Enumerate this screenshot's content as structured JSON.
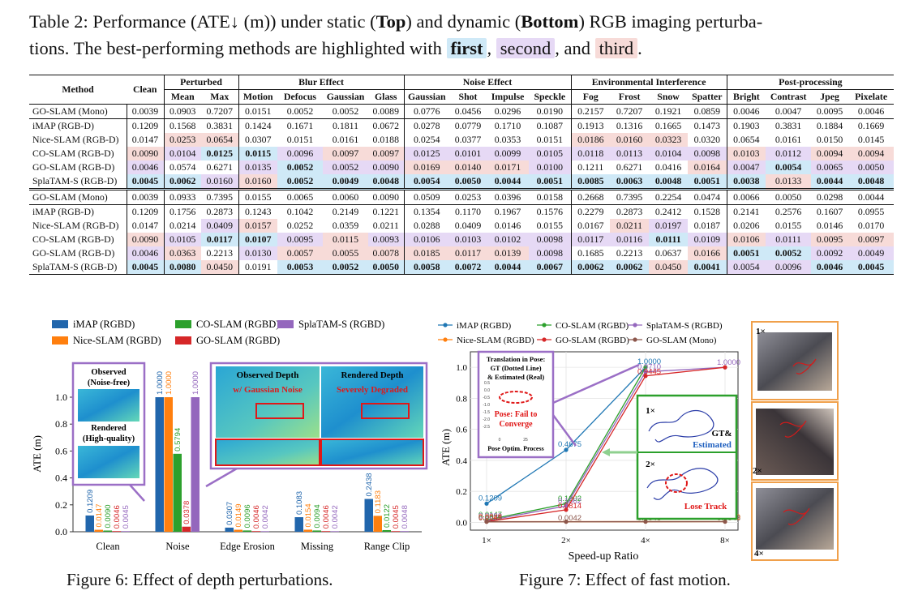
{
  "caption": {
    "part1": "Table 2: Performance (ATE↓ (m)) under static (",
    "top": "Top",
    "part2": ") and dynamic (",
    "bottom": "Bottom",
    "part3": ") RGB imaging perturba-",
    "part4": "tions. The best-performing methods are highlighted with ",
    "first": "first",
    "comma1": ", ",
    "second": "second",
    "comma2": ", and ",
    "third": "third",
    "end": "."
  },
  "table": {
    "groups": [
      "Method",
      "Clean",
      "Perturbed",
      "Blur Effect",
      "Noise Effect",
      "Environmental Interference",
      "Post-processing"
    ],
    "subcols": [
      "Mean",
      "Max",
      "Motion",
      "Defocus",
      "Gaussian",
      "Glass",
      "Gaussian",
      "Shot",
      "Impulse",
      "Speckle",
      "Fog",
      "Frost",
      "Snow",
      "Spatter",
      "Bright",
      "Contrast",
      "Jpeg",
      "Pixelate"
    ],
    "blocks": [
      {
        "mono": {
          "name": "GO-SLAM (Mono)",
          "cells": [
            "0.0039",
            "0.0903",
            "0.7207",
            "0.0151",
            "0.0052",
            "0.0052",
            "0.0089",
            "0.0776",
            "0.0456",
            "0.0296",
            "0.0190",
            "0.2157",
            "0.7207",
            "0.1921",
            "0.0859",
            "0.0046",
            "0.0047",
            "0.0095",
            "0.0046"
          ],
          "hl": [
            "",
            "",
            "",
            "",
            "",
            "",
            "",
            "",
            "",
            "",
            "",
            "",
            "",
            "",
            "",
            "",
            "",
            "",
            ""
          ]
        },
        "rows": [
          {
            "name": "iMAP (RGB-D)",
            "cells": [
              "0.1209",
              "0.1568",
              "0.3831",
              "0.1424",
              "0.1671",
              "0.1811",
              "0.0672",
              "0.0278",
              "0.0779",
              "0.1710",
              "0.1087",
              "0.1913",
              "0.1316",
              "0.1665",
              "0.1473",
              "0.1903",
              "0.3831",
              "0.1884",
              "0.1669"
            ],
            "hl": [
              "",
              "",
              "",
              "",
              "",
              "",
              "",
              "",
              "",
              "",
              "",
              "",
              "",
              "",
              "",
              "",
              "",
              "",
              ""
            ]
          },
          {
            "name": "Nice-SLAM (RGB-D)",
            "cells": [
              "0.0147",
              "0.0253",
              "0.0654",
              "0.0307",
              "0.0151",
              "0.0161",
              "0.0188",
              "0.0254",
              "0.0377",
              "0.0353",
              "0.0151",
              "0.0186",
              "0.0160",
              "0.0323",
              "0.0320",
              "0.0654",
              "0.0161",
              "0.0150",
              "0.0145"
            ],
            "hl": [
              "",
              "c3",
              "c3",
              "",
              "",
              "",
              "",
              "",
              "",
              "",
              "",
              "c3",
              "c3",
              "c3",
              "",
              "",
              "",
              "",
              ""
            ]
          },
          {
            "name": "CO-SLAM (RGB-D)",
            "cells": [
              "0.0090",
              "0.0104",
              "0.0125",
              "0.0115",
              "0.0096",
              "0.0097",
              "0.0097",
              "0.0125",
              "0.0101",
              "0.0099",
              "0.0105",
              "0.0118",
              "0.0113",
              "0.0104",
              "0.0098",
              "0.0103",
              "0.0112",
              "0.0094",
              "0.0094"
            ],
            "hl": [
              "c3",
              "c2",
              "c1b",
              "c1b",
              "c2",
              "c3",
              "c3",
              "c2",
              "c2",
              "c2",
              "c2",
              "c2",
              "c2",
              "c2",
              "c2",
              "c3",
              "c2",
              "c3",
              "c3"
            ]
          },
          {
            "name": "GO-SLAM (RGB-D)",
            "cells": [
              "0.0046",
              "0.0574",
              "0.6271",
              "0.0135",
              "0.0052",
              "0.0052",
              "0.0090",
              "0.0169",
              "0.0140",
              "0.0171",
              "0.0100",
              "0.1211",
              "0.6271",
              "0.0416",
              "0.0164",
              "0.0047",
              "0.0054",
              "0.0065",
              "0.0050"
            ],
            "hl": [
              "c2",
              "",
              "",
              "c2",
              "c1b",
              "c2",
              "c2",
              "c3",
              "c3",
              "c3",
              "c2",
              "",
              "",
              "",
              "c3",
              "c2",
              "c1b",
              "c2",
              "c2"
            ]
          },
          {
            "name": "SplaTAM-S (RGB-D)",
            "cells": [
              "0.0045",
              "0.0062",
              "0.0160",
              "0.0160",
              "0.0052",
              "0.0049",
              "0.0048",
              "0.0054",
              "0.0050",
              "0.0044",
              "0.0051",
              "0.0085",
              "0.0063",
              "0.0048",
              "0.0051",
              "0.0038",
              "0.0133",
              "0.0044",
              "0.0048"
            ],
            "hl": [
              "c1b",
              "c1b",
              "c2",
              "c3",
              "c1b",
              "c1b",
              "c1b",
              "c1b",
              "c1b",
              "c1b",
              "c1b",
              "c1b",
              "c1b",
              "c1b",
              "c1b",
              "c1b",
              "c3",
              "c1b",
              "c1b"
            ]
          }
        ]
      },
      {
        "mono": {
          "name": "GO-SLAM (Mono)",
          "cells": [
            "0.0039",
            "0.0933",
            "0.7395",
            "0.0155",
            "0.0065",
            "0.0060",
            "0.0090",
            "0.0509",
            "0.0253",
            "0.0396",
            "0.0158",
            "0.2668",
            "0.7395",
            "0.2254",
            "0.0474",
            "0.0066",
            "0.0050",
            "0.0298",
            "0.0044"
          ],
          "hl": [
            "",
            "",
            "",
            "",
            "",
            "",
            "",
            "",
            "",
            "",
            "",
            "",
            "",
            "",
            "",
            "",
            "",
            "",
            ""
          ]
        },
        "rows": [
          {
            "name": "iMAP (RGB-D)",
            "cells": [
              "0.1209",
              "0.1756",
              "0.2873",
              "0.1243",
              "0.1042",
              "0.2149",
              "0.1221",
              "0.1354",
              "0.1170",
              "0.1967",
              "0.1576",
              "0.2279",
              "0.2873",
              "0.2412",
              "0.1528",
              "0.2141",
              "0.2576",
              "0.1607",
              "0.0955"
            ],
            "hl": [
              "",
              "",
              "",
              "",
              "",
              "",
              "",
              "",
              "",
              "",
              "",
              "",
              "",
              "",
              "",
              "",
              "",
              "",
              ""
            ]
          },
          {
            "name": "Nice-SLAM (RGB-D)",
            "cells": [
              "0.0147",
              "0.0214",
              "0.0409",
              "0.0157",
              "0.0252",
              "0.0359",
              "0.0211",
              "0.0288",
              "0.0409",
              "0.0146",
              "0.0155",
              "0.0167",
              "0.0211",
              "0.0197",
              "0.0187",
              "0.0206",
              "0.0155",
              "0.0146",
              "0.0170"
            ],
            "hl": [
              "",
              "",
              "c2",
              "c3",
              "",
              "",
              "",
              "",
              "",
              "",
              "",
              "",
              "c3",
              "c2",
              "",
              "",
              "",
              "",
              ""
            ]
          },
          {
            "name": "CO-SLAM (RGB-D)",
            "cells": [
              "0.0090",
              "0.0105",
              "0.0117",
              "0.0107",
              "0.0095",
              "0.0115",
              "0.0093",
              "0.0106",
              "0.0103",
              "0.0102",
              "0.0098",
              "0.0117",
              "0.0116",
              "0.0111",
              "0.0109",
              "0.0106",
              "0.0111",
              "0.0095",
              "0.0097"
            ],
            "hl": [
              "c3",
              "c2",
              "c1b",
              "c1b",
              "c2",
              "c3",
              "c2",
              "c2",
              "c2",
              "c2",
              "c2",
              "c2",
              "c2",
              "c1b",
              "c2",
              "c3",
              "c2",
              "c3",
              "c3"
            ]
          },
          {
            "name": "GO-SLAM (RGB-D)",
            "cells": [
              "0.0046",
              "0.0363",
              "0.2213",
              "0.0130",
              "0.0057",
              "0.0055",
              "0.0078",
              "0.0185",
              "0.0117",
              "0.0139",
              "0.0098",
              "0.1685",
              "0.2213",
              "0.0637",
              "0.0166",
              "0.0051",
              "0.0052",
              "0.0092",
              "0.0049"
            ],
            "hl": [
              "c2",
              "c3",
              "",
              "c2",
              "c3",
              "c3",
              "c3",
              "c3",
              "c3",
              "c3",
              "c2",
              "",
              "",
              "",
              "c3",
              "c1b",
              "c1b",
              "c2",
              "c2"
            ]
          },
          {
            "name": "SplaTAM-S (RGB-D)",
            "cells": [
              "0.0045",
              "0.0080",
              "0.0450",
              "0.0191",
              "0.0053",
              "0.0052",
              "0.0050",
              "0.0058",
              "0.0072",
              "0.0044",
              "0.0067",
              "0.0062",
              "0.0062",
              "0.0450",
              "0.0041",
              "0.0054",
              "0.0096",
              "0.0046",
              "0.0045"
            ],
            "hl": [
              "c1b",
              "c1b",
              "c3",
              "",
              "c1b",
              "c1b",
              "c1b",
              "c1b",
              "c1b",
              "c1b",
              "c1b",
              "c1b",
              "c1b",
              "c3",
              "c1b",
              "c2",
              "c2",
              "c1b",
              "c1b"
            ]
          }
        ]
      }
    ]
  },
  "fig6": {
    "caption": "Figure 6: Effect of depth perturbations.",
    "legend": [
      "iMAP (RGBD)",
      "Nice-SLAM (RGBD)",
      "CO-SLAM (RGBD)",
      "GO-SLAM (RGBD)",
      "SplaTAM-S (RGBD)"
    ],
    "colors": [
      "#2166ac",
      "#ff7f0e",
      "#2ca02c",
      "#d62728",
      "#9467bd"
    ],
    "inset_observed": [
      "Observed",
      "(Noise-free)"
    ],
    "inset_rendered": [
      "Rendered",
      "(High-quality)"
    ],
    "panel_observed_depth": "Observed Depth",
    "panel_rendered_depth": "Rendered Depth",
    "panel_noise": "w/ Gaussian Noise",
    "panel_degraded": "Severely Degraded"
  },
  "fig7": {
    "caption": "Figure 7: Effect of fast motion.",
    "legend": [
      "iMAP (RGBD)",
      "CO-SLAM (RGBD)",
      "SplaTAM-S (RGBD)",
      "Nice-SLAM (RGBD)",
      "GO-SLAM (RGBD)",
      "GO-SLAM (Mono)"
    ],
    "colors": [
      "#1f77b4",
      "#2ca02c",
      "#9467bd",
      "#ff7f0e",
      "#d62728",
      "#8c564b"
    ],
    "inset_title": [
      "Translation in Pose:",
      "GT (Dotted Line)",
      "& Estimated (Real)"
    ],
    "inset_fail": [
      "Pose: Fail to",
      "Converge"
    ],
    "inset_footer": "Pose Optim. Process",
    "inset_ticks_y": [
      "0.5",
      "0.0",
      "-0.5",
      "-1.0",
      "-1.5",
      "-2.0",
      "-2.5"
    ],
    "inset_ticks_x": [
      "0",
      "25"
    ],
    "traj_1x": "1×",
    "traj_gt": "GT&",
    "traj_est": "Estimated",
    "traj_2x": "2×",
    "traj_lose": "Lose Track",
    "scene_labels": [
      "1×",
      "2×",
      "4×"
    ]
  },
  "chart_data": [
    {
      "type": "bar",
      "title": "",
      "xlabel": "",
      "ylabel": "ATE (m)",
      "ylim": [
        0,
        1.1
      ],
      "yticks": [
        "0.0",
        "0.2",
        "0.4",
        "0.6",
        "0.8",
        "1.0"
      ],
      "categories": [
        "Clean",
        "Noise",
        "Edge Erosion",
        "Missing",
        "Range Clip"
      ],
      "series": [
        {
          "name": "iMAP (RGBD)",
          "values": [
            0.1209,
            1.0,
            0.0307,
            0.1083,
            0.2438
          ],
          "labels": [
            "0.1209",
            "1.0000",
            "0.0307",
            "0.1083",
            "0.2438"
          ]
        },
        {
          "name": "Nice-SLAM (RGBD)",
          "values": [
            0.0147,
            1.0,
            0.0149,
            0.0154,
            0.1183
          ],
          "labels": [
            "0.0147",
            "1.0000",
            "0.0149",
            "0.0154",
            "0.1183"
          ]
        },
        {
          "name": "CO-SLAM (RGBD)",
          "values": [
            0.009,
            0.5794,
            0.0096,
            0.0094,
            0.0122
          ],
          "labels": [
            "0.0090",
            "0.5794",
            "0.0096",
            "0.0094",
            "0.0122"
          ]
        },
        {
          "name": "GO-SLAM (RGBD)",
          "values": [
            0.0046,
            0.0378,
            0.0046,
            0.0046,
            0.0045
          ],
          "labels": [
            "0.0046",
            "0.0378",
            "0.0046",
            "0.0046",
            "0.0045"
          ]
        },
        {
          "name": "SplaTAM-S (RGBD)",
          "values": [
            0.0045,
            1.0,
            0.0042,
            0.0042,
            0.0048
          ],
          "labels": [
            "0.0045",
            "1.0000",
            "0.0042",
            "0.0042",
            "0.0048"
          ]
        }
      ]
    },
    {
      "type": "line",
      "title": "",
      "xlabel": "Speed-up Ratio",
      "ylabel": "ATE (m)",
      "x": [
        "1×",
        "2×",
        "4×",
        "8×"
      ],
      "ylim": [
        -0.05,
        1.1
      ],
      "yticks": [
        "0.0",
        "0.2",
        "0.4",
        "0.6",
        "0.8",
        "1.0"
      ],
      "series": [
        {
          "name": "iMAP (RGBD)",
          "values": [
            0.1209,
            0.4675,
            1.0,
            null
          ],
          "labels": [
            "0.1209",
            "0.4675",
            "1.0000",
            ""
          ]
        },
        {
          "name": "Nice-SLAM (RGBD)",
          "values": [
            0.0147,
            0.1202,
            1.0,
            null
          ],
          "labels": [
            "0.0147",
            "0.1202",
            "",
            ""
          ]
        },
        {
          "name": "CO-SLAM (RGBD)",
          "values": [
            0.009,
            0.1062,
            0.971,
            1.0
          ],
          "labels": [
            "0.0090",
            "0.1062",
            "0.9710",
            "1.0000"
          ]
        },
        {
          "name": "GO-SLAM (RGBD)",
          "values": [
            0.0046,
            0.0046,
            0.0046,
            0.005
          ],
          "labels": [
            "0.0046",
            "",
            "0.0046",
            "0.0050"
          ]
        },
        {
          "name": "SplaTAM-S (RGBD)",
          "values": [
            0.0045,
            0.0814,
            0.9445,
            1.0
          ],
          "labels": [
            "0.0045",
            "0.0814",
            "0.9445",
            ""
          ]
        },
        {
          "name": "GO-SLAM (Mono)",
          "values": [
            0.0039,
            0.0042,
            0.0046,
            0.0048
          ],
          "labels": [
            "0.0039",
            "0.0042",
            "0.0046",
            "0.0048"
          ]
        }
      ]
    }
  ]
}
